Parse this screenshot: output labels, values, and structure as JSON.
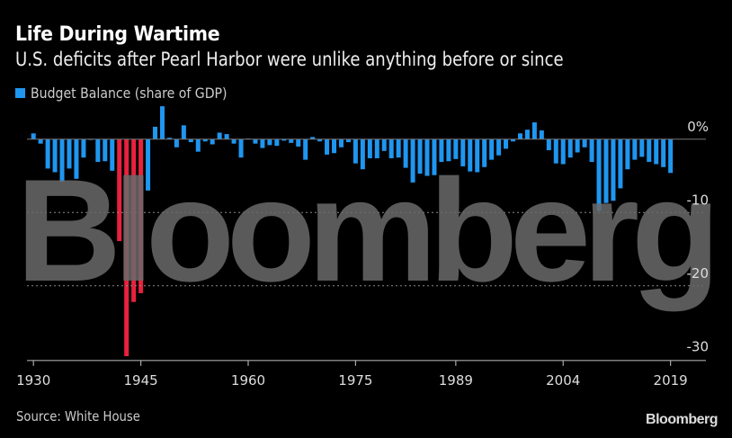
{
  "header": {
    "title": "Life During Wartime",
    "subtitle": "U.S. deficits after Pearl Harbor were unlike anything before or since"
  },
  "legend": {
    "label": "Budget Balance (share of GDP)",
    "color": "#1f96f0"
  },
  "footer": {
    "source": "Source: White House",
    "brand": "Bloomberg"
  },
  "watermark": "Bloomberg",
  "colors": {
    "normal": "#1f96f0",
    "war": "#e8213e",
    "watermark": "#6a6a6a",
    "grid": "#8a8a8a"
  },
  "chart_data": {
    "type": "bar",
    "title": "Life During Wartime",
    "subtitle": "U.S. deficits after Pearl Harbor were unlike anything before or since",
    "xlabel": "",
    "ylabel": "",
    "ylim": [
      -30,
      5
    ],
    "yticks": [
      0,
      -10,
      -20,
      -30
    ],
    "ytick_labels": [
      "0%",
      "-10",
      "-20",
      "-30"
    ],
    "xtick_labels": [
      "1930",
      "1945",
      "1960",
      "1975",
      "1989",
      "2004",
      "2019"
    ],
    "grid": "dotted horizontal at -10 and -20",
    "legend": "top-left",
    "highlight_years": [
      1942,
      1943,
      1944,
      1945
    ],
    "series": [
      {
        "name": "Budget Balance (share of GDP)",
        "x": [
          1930,
          1931,
          1932,
          1933,
          1934,
          1935,
          1936,
          1937,
          1938,
          1939,
          1940,
          1941,
          1942,
          1943,
          1944,
          1945,
          1946,
          1947,
          1948,
          1949,
          1950,
          1951,
          1952,
          1953,
          1954,
          1955,
          1956,
          1957,
          1958,
          1959,
          1960,
          1961,
          1962,
          1963,
          1964,
          1965,
          1966,
          1967,
          1968,
          1969,
          1970,
          1971,
          1972,
          1973,
          1974,
          1975,
          1976,
          1977,
          1978,
          1979,
          1980,
          1981,
          1982,
          1983,
          1984,
          1985,
          1986,
          1987,
          1988,
          1989,
          1990,
          1991,
          1992,
          1993,
          1994,
          1995,
          1996,
          1997,
          1998,
          1999,
          2000,
          2001,
          2002,
          2003,
          2004,
          2005,
          2006,
          2007,
          2008,
          2009,
          2010,
          2011,
          2012,
          2013,
          2014,
          2015,
          2016,
          2017,
          2018,
          2019
        ],
        "values": [
          0.8,
          -0.6,
          -4.0,
          -4.5,
          -5.8,
          -4.0,
          -5.4,
          -2.5,
          -0.1,
          -3.1,
          -3.0,
          -4.3,
          -13.9,
          -29.6,
          -22.2,
          -21.0,
          -7.0,
          1.7,
          4.5,
          0.2,
          -1.1,
          1.9,
          -0.4,
          -1.7,
          -0.3,
          -0.7,
          0.9,
          0.7,
          -0.6,
          -2.5,
          0.1,
          -0.6,
          -1.2,
          -0.8,
          -0.9,
          -0.2,
          -0.5,
          -1.0,
          -2.8,
          0.3,
          -0.3,
          -2.1,
          -1.9,
          -1.1,
          -0.4,
          -3.3,
          -4.1,
          -2.6,
          -2.6,
          -1.6,
          -2.6,
          -2.5,
          -3.9,
          -5.9,
          -4.7,
          -5.0,
          -4.9,
          -3.1,
          -3.0,
          -2.7,
          -3.7,
          -4.4,
          -4.5,
          -3.8,
          -2.8,
          -2.2,
          -1.3,
          -0.3,
          0.8,
          1.3,
          2.3,
          1.2,
          -1.5,
          -3.3,
          -3.4,
          -2.5,
          -1.8,
          -1.1,
          -3.1,
          -9.8,
          -8.7,
          -8.4,
          -6.7,
          -4.1,
          -2.8,
          -2.4,
          -3.1,
          -3.4,
          -3.8,
          -4.6
        ]
      }
    ]
  }
}
